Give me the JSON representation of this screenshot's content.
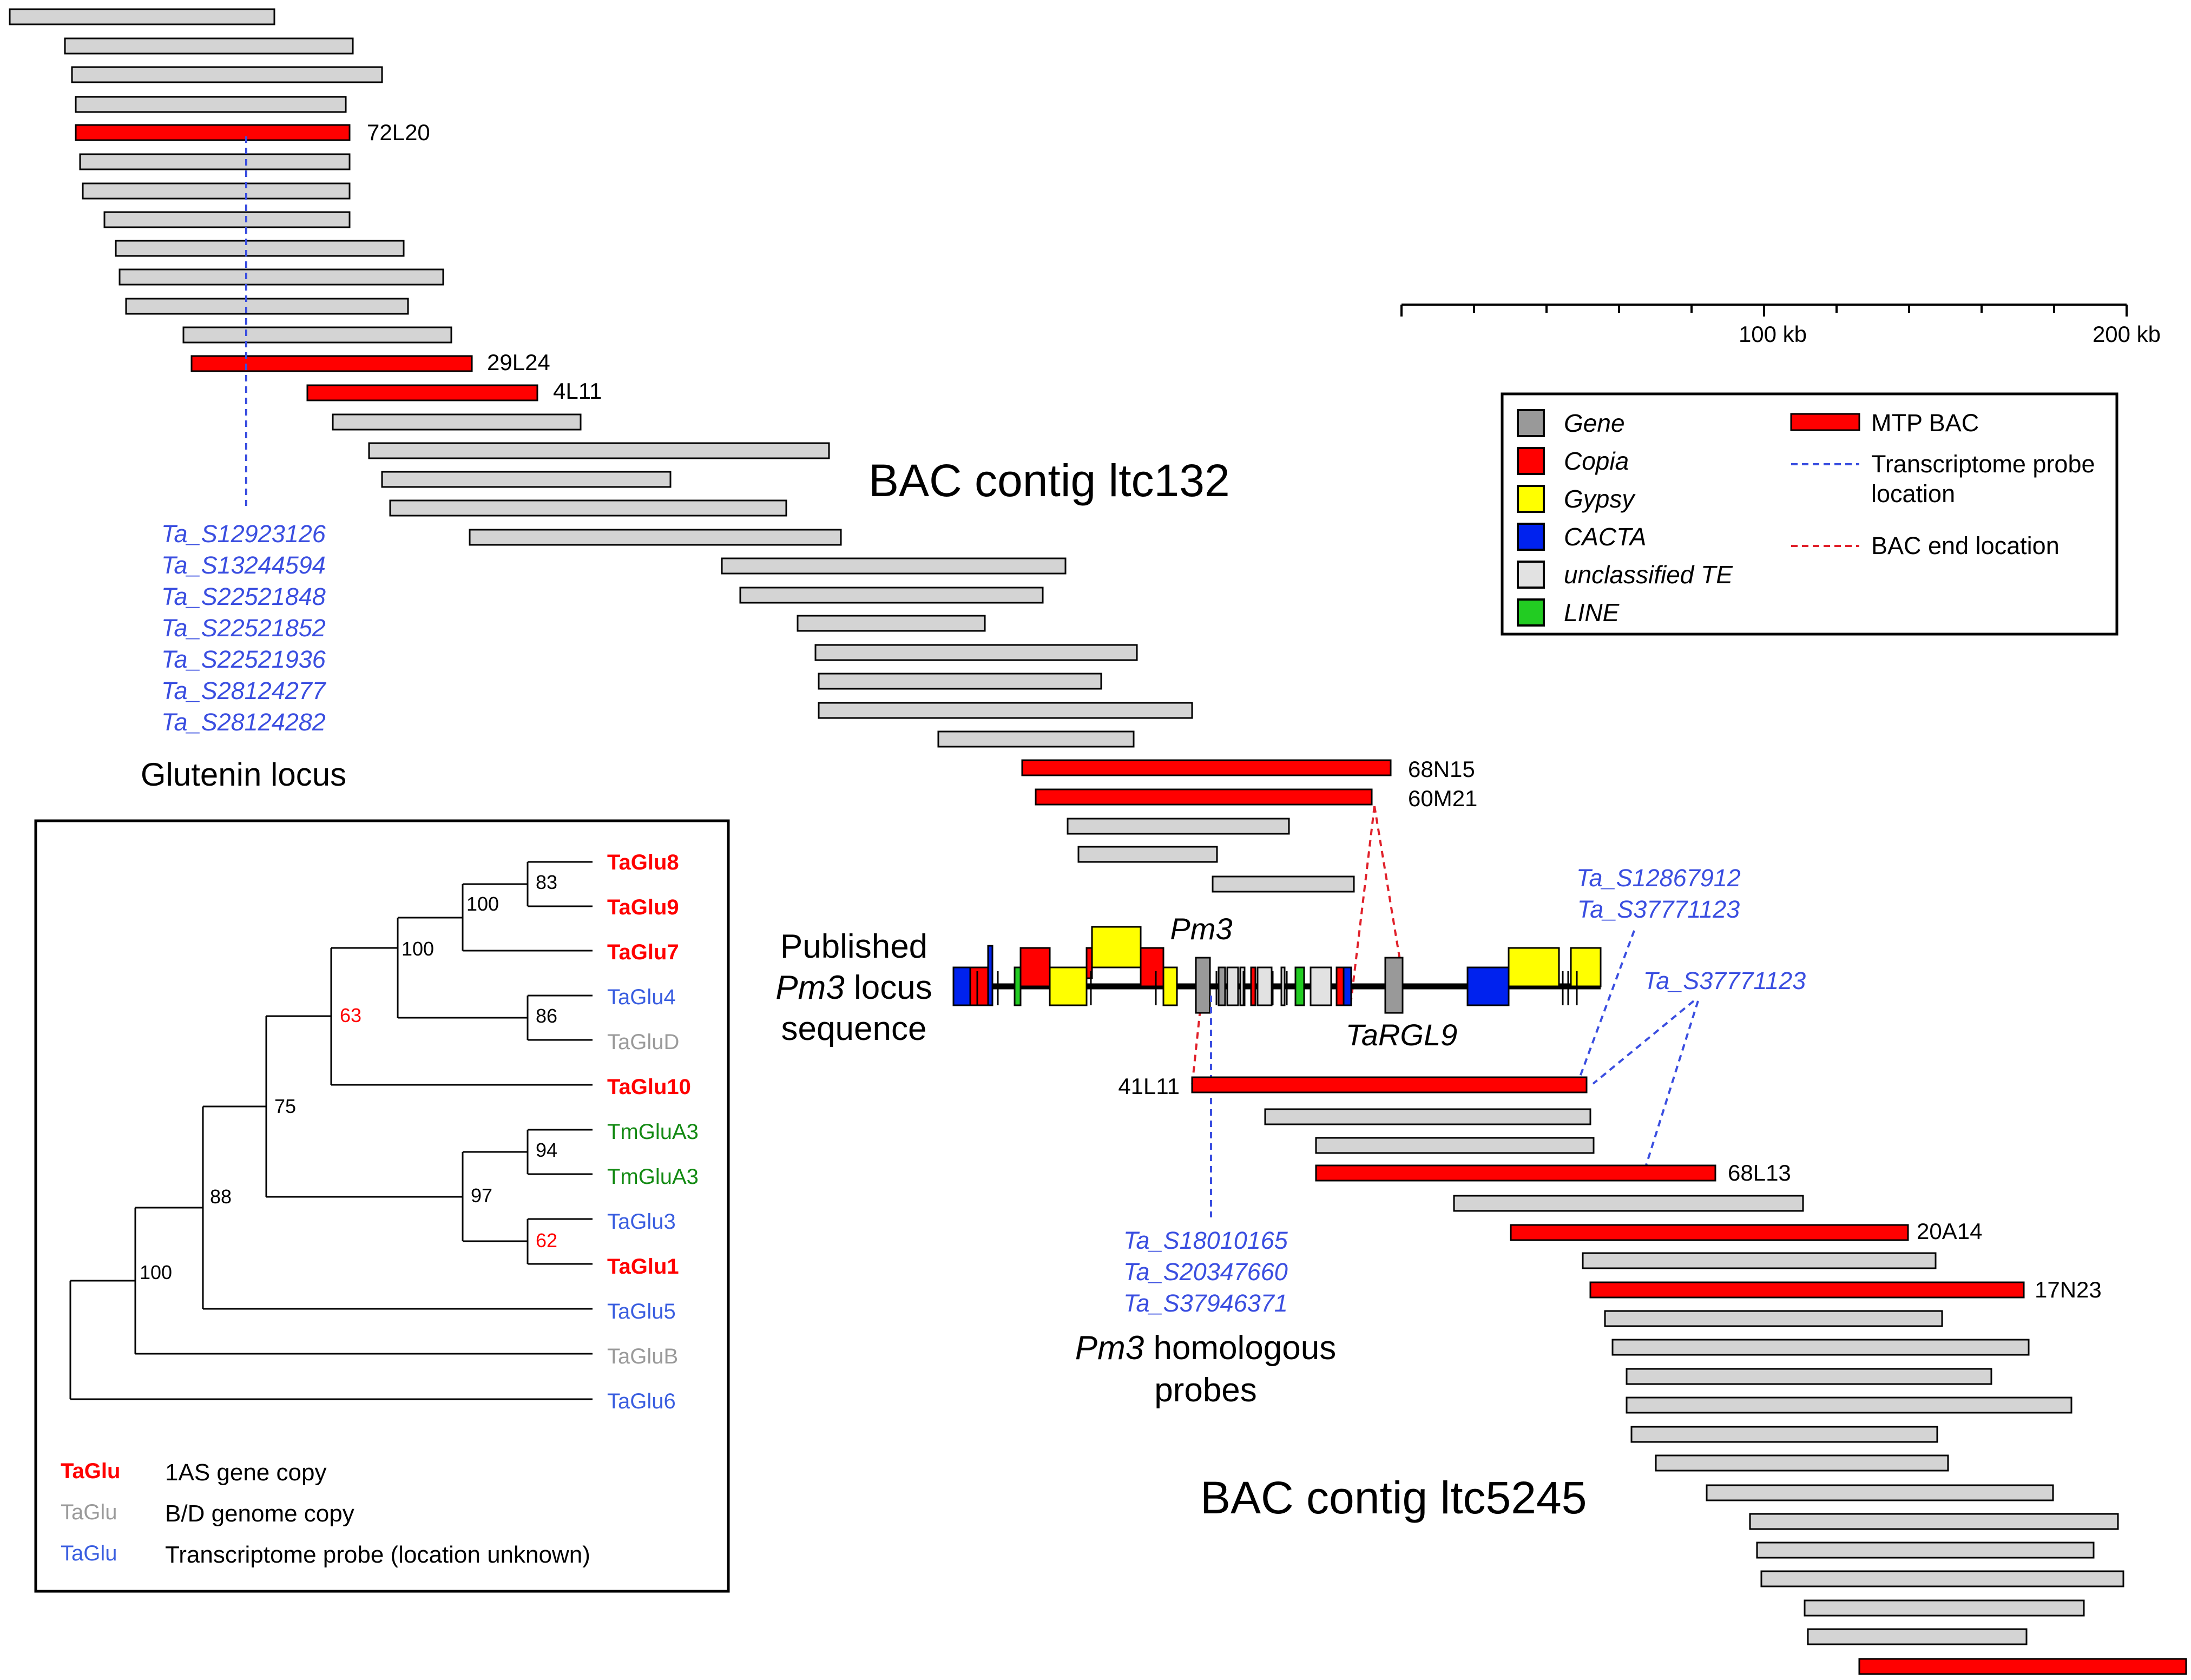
{
  "colors": {
    "gray_bac": "#d4d4d4",
    "mtp_red": "#ff0000",
    "probe_blue": "#3a4ee0",
    "bac_end_red": "#e0202a",
    "gene_gray": "#999999",
    "copia": "#ff0000",
    "gypsy": "#ffff00",
    "cacta": "#0022ee",
    "unclassified": "#e2e2e2",
    "line": "#22cc22",
    "tree_red": "#ff0000",
    "tree_gray": "#9a9a9a",
    "tree_blue": "#3a5ee0",
    "tree_green": "#138a13"
  },
  "labels": {
    "contig1": "BAC contig ltc132",
    "contig2": "BAC contig ltc5245",
    "glutenin": "Glutenin locus",
    "published_lines": [
      "Published",
      "Pm3",
      "locus",
      "sequence"
    ],
    "pm3": "Pm3",
    "targl9": "TaRGL9",
    "pm3_homologous_lines": [
      "Pm3",
      "homologous",
      "probes"
    ]
  },
  "bac_labels": {
    "b72L20": "72L20",
    "b29L24": "29L24",
    "b4L11": "4L11",
    "b68N15": "68N15",
    "b60M21": "60M21",
    "b41L11": "41L11",
    "b68L13": "68L13",
    "b20A14": "20A14",
    "b17N23": "17N23"
  },
  "probes": {
    "glutenin": [
      "Ta_S12923126",
      "Ta_S13244594",
      "Ta_S22521848",
      "Ta_S22521852",
      "Ta_S22521936",
      "Ta_S28124277",
      "Ta_S28124282"
    ],
    "right_top": [
      "Ta_S12867912",
      "Ta_S37771123"
    ],
    "right_mid": [
      "Ta_S37771123"
    ],
    "pm3": [
      "Ta_S18010165",
      "Ta_S20347660",
      "Ta_S37946371"
    ]
  },
  "scale": {
    "label_100": "100 kb",
    "label_200": "200 kb"
  },
  "legend": {
    "te_items": [
      {
        "label": "Gene",
        "color": "#999999"
      },
      {
        "label": "Copia",
        "color": "#ff0000"
      },
      {
        "label": "Gypsy",
        "color": "#ffff00"
      },
      {
        "label": "CACTA",
        "color": "#0022ee"
      },
      {
        "label": "unclassified TE",
        "color": "#e2e2e2"
      },
      {
        "label": "LINE",
        "color": "#22cc22"
      }
    ],
    "mtp_bac": "MTP BAC",
    "transcriptome_lines": [
      "Transcriptome probe",
      "location"
    ],
    "bac_end": "BAC end location"
  },
  "tree": {
    "leaves": [
      {
        "label": "TaGlu8",
        "kind": "red"
      },
      {
        "label": "TaGlu9",
        "kind": "red"
      },
      {
        "label": "TaGlu7",
        "kind": "red"
      },
      {
        "label": "TaGlu4",
        "kind": "blue"
      },
      {
        "label": "TaGluD",
        "kind": "gray"
      },
      {
        "label": "TaGlu10",
        "kind": "red"
      },
      {
        "label": "TmGluA3",
        "kind": "green"
      },
      {
        "label": "TmGluA3",
        "kind": "green"
      },
      {
        "label": "TaGlu3",
        "kind": "blue"
      },
      {
        "label": "TaGlu1",
        "kind": "red"
      },
      {
        "label": "TaGlu5",
        "kind": "blue"
      },
      {
        "label": "TaGluB",
        "kind": "gray"
      },
      {
        "label": "TaGlu6",
        "kind": "blue"
      }
    ],
    "bootstraps": [
      "83",
      "100",
      "100",
      "86",
      "63",
      "75",
      "94",
      "62",
      "97",
      "88",
      "100"
    ],
    "key": [
      {
        "swatch": "TaGlu",
        "kind": "red",
        "text": "1AS gene copy"
      },
      {
        "swatch": "TaGlu",
        "kind": "gray",
        "text": "B/D genome copy"
      },
      {
        "swatch": "TaGlu",
        "kind": "blue",
        "text": "Transcriptome probe (location unknown)"
      }
    ]
  }
}
